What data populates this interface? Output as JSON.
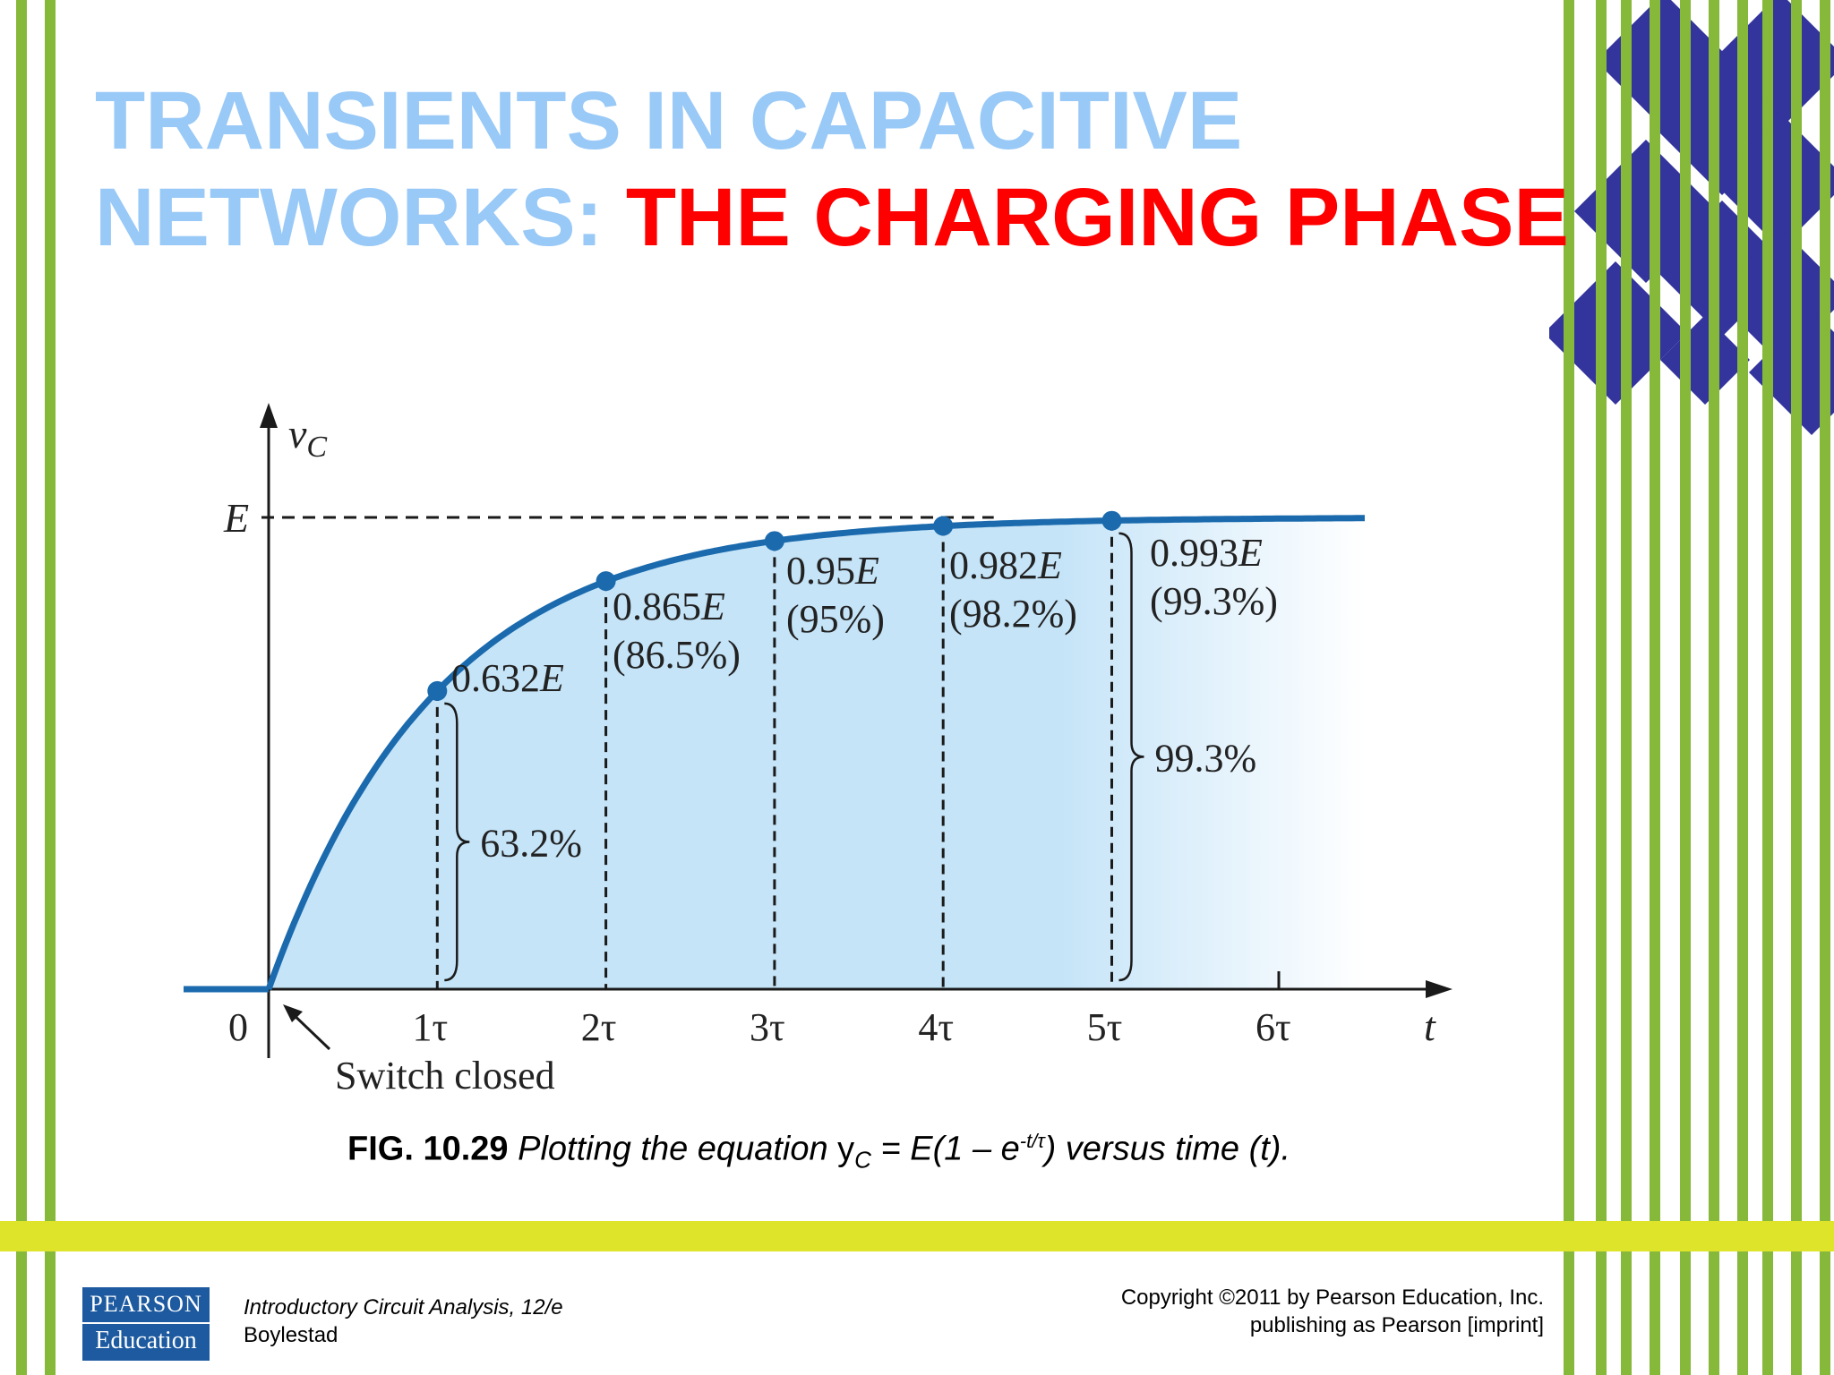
{
  "slide": {
    "title_line1": "TRANSIENTS IN CAPACITIVE",
    "title_line2_prefix": "NETWORKS:",
    "title_line2_highlight": "THE CHARGING PHASE"
  },
  "caption": {
    "fig_label": "FIG. 10.29",
    "text_before": "Plotting the equation",
    "var_base": "y",
    "var_sub": "C",
    "eq_mid": "= E(1 – e",
    "exponent": "-t/τ",
    "text_after": ") versus time (t)."
  },
  "footer": {
    "logo_line1": "PEARSON",
    "logo_line2": "Education",
    "book_title": "Introductory Circuit Analysis, 12/e",
    "author": "Boylestad",
    "copyright_line1": "Copyright ©2011 by Pearson Education, Inc.",
    "copyright_line2": "publishing as Pearson [imprint]"
  },
  "colors": {
    "title_light_blue": "#99c9f7",
    "title_red": "#ff0000",
    "stripe_green": "#86b83a",
    "band_yellow": "#dde42a",
    "curve_blue": "#1a6aad",
    "fill_light_blue": "#c5e4f8",
    "diamond_navy": "#33349c",
    "logo_blue": "#1d5aa0"
  },
  "chart_data": {
    "type": "line",
    "ylabel_base": "v",
    "ylabel_sub": "C",
    "xlabel": "t",
    "y_top_label": "E",
    "origin_label": "0",
    "x_ticks": [
      {
        "t": 1,
        "label": "1τ"
      },
      {
        "t": 2,
        "label": "2τ"
      },
      {
        "t": 3,
        "label": "3τ"
      },
      {
        "t": 4,
        "label": "4τ"
      },
      {
        "t": 5,
        "label": "5τ"
      },
      {
        "t": 6,
        "label": "6τ"
      }
    ],
    "points": [
      {
        "t": 1,
        "value": 0.632,
        "label": "0.632E",
        "percent_label": ""
      },
      {
        "t": 2,
        "value": 0.865,
        "label": "0.865E",
        "percent_label": "(86.5%)"
      },
      {
        "t": 3,
        "value": 0.95,
        "label": "0.95E",
        "percent_label": "(95%)"
      },
      {
        "t": 4,
        "value": 0.982,
        "label": "0.982E",
        "percent_label": "(98.2%)"
      },
      {
        "t": 5,
        "value": 0.993,
        "label": "0.993E",
        "percent_label": "(99.3%)"
      }
    ],
    "brace_labels": [
      {
        "t": 1,
        "label": "63.2%"
      },
      {
        "t": 5,
        "label": "99.3%"
      }
    ],
    "annotation": "Switch closed",
    "xlim": [
      0,
      6.5
    ],
    "ylim": [
      0,
      1
    ]
  }
}
